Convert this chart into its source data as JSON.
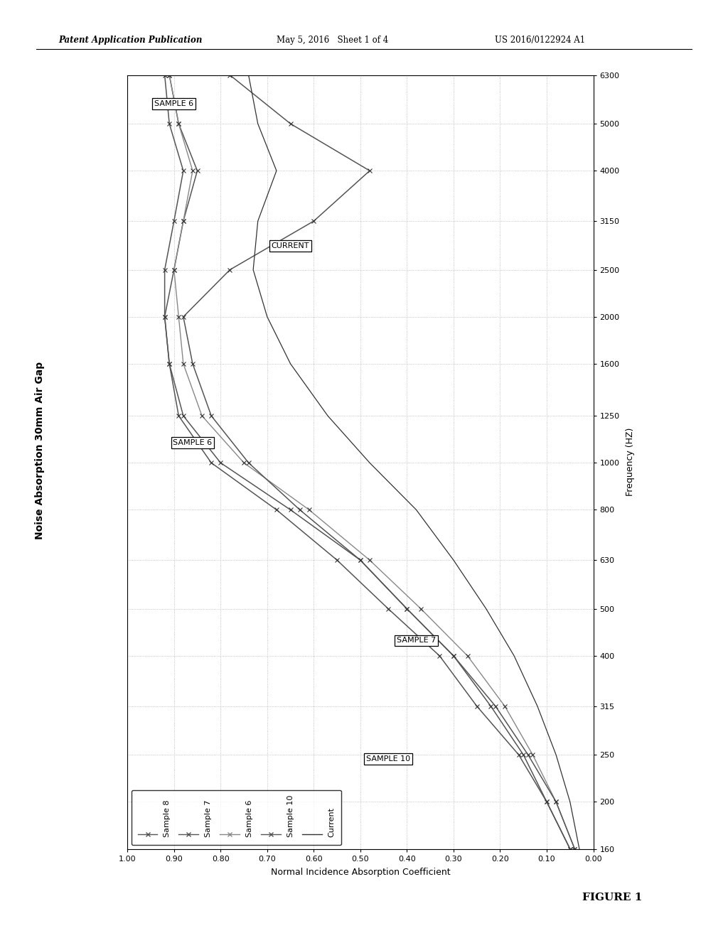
{
  "title": "Noise Absorption 30mm Air Gap",
  "xlabel": "Normal Incidence Absorption Coefficient",
  "ylabel": "Frequency (HZ)",
  "header_left": "Patent Application Publication",
  "header_mid": "May 5, 2016   Sheet 1 of 4",
  "header_right": "US 2016/0122924 A1",
  "footer": "FIGURE 1",
  "frequencies": [
    160,
    200,
    250,
    315,
    400,
    500,
    630,
    800,
    1000,
    1250,
    1600,
    2000,
    2500,
    3150,
    4000,
    5000,
    6300
  ],
  "sample8": [
    0.05,
    0.1,
    0.15,
    0.22,
    0.3,
    0.4,
    0.5,
    0.65,
    0.8,
    0.88,
    0.91,
    0.92,
    0.92,
    0.9,
    0.88,
    0.91,
    0.92
  ],
  "sample7": [
    0.05,
    0.1,
    0.16,
    0.25,
    0.33,
    0.44,
    0.55,
    0.68,
    0.82,
    0.89,
    0.91,
    0.92,
    0.9,
    0.88,
    0.85,
    0.89,
    0.91
  ],
  "sample6": [
    0.04,
    0.08,
    0.13,
    0.19,
    0.27,
    0.37,
    0.48,
    0.61,
    0.75,
    0.84,
    0.88,
    0.89,
    0.9,
    0.88,
    0.86,
    0.89,
    0.91
  ],
  "sample10": [
    0.04,
    0.08,
    0.14,
    0.21,
    0.3,
    0.4,
    0.5,
    0.63,
    0.74,
    0.82,
    0.86,
    0.88,
    0.78,
    0.6,
    0.48,
    0.65,
    0.78
  ],
  "current": [
    0.03,
    0.05,
    0.08,
    0.12,
    0.17,
    0.23,
    0.3,
    0.38,
    0.48,
    0.57,
    0.65,
    0.7,
    0.73,
    0.72,
    0.68,
    0.72,
    0.74
  ],
  "legend_labels": [
    "Sample 8",
    "Sample 7",
    "Sample 6",
    "Sample 10",
    "Current"
  ],
  "background": "#ffffff",
  "grid_color": "#aaaaaa",
  "line_color": "#555555"
}
